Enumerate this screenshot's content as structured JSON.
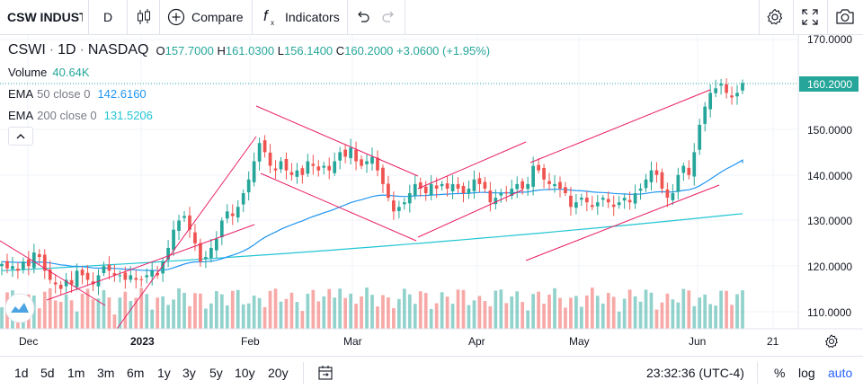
{
  "toolbar": {
    "symbol": "CSW INDUST",
    "interval": "D",
    "compare_label": "Compare",
    "indicators_label": "Indicators"
  },
  "legend": {
    "symbol": "CSWI",
    "interval": "1D",
    "exchange": "NASDAQ",
    "open_label": "O",
    "open": "157.7000",
    "high_label": "H",
    "high": "161.0300",
    "low_label": "L",
    "low": "156.1400",
    "close_label": "C",
    "close": "160.2000",
    "change": "+3.0600 (+1.95%)",
    "volume_label": "Volume",
    "volume": "40.64K",
    "ema50_name": "EMA",
    "ema50_params": "50 close 0",
    "ema50_value": "142.6160",
    "ema200_name": "EMA",
    "ema200_params": "200 close 0",
    "ema200_value": "131.5206"
  },
  "price_axis": {
    "labels": [
      "170.0000",
      "150.0000",
      "140.0000",
      "130.0000",
      "120.0000",
      "110.0000"
    ],
    "last_price_label": "160.2000"
  },
  "time_axis": {
    "labels": [
      "Dec",
      "2023",
      "Feb",
      "Mar",
      "Apr",
      "May",
      "Jun",
      "21"
    ]
  },
  "bottom": {
    "ranges": [
      "1d",
      "5d",
      "1m",
      "3m",
      "6m",
      "1y",
      "3y",
      "5y",
      "10y",
      "20y"
    ],
    "time": "23:32:36 (UTC-4)",
    "percent_label": "%",
    "log_label": "log",
    "auto_label": "auto"
  },
  "colors": {
    "up": "#26a69a",
    "down": "#ef5350",
    "ema50": "#2196f3",
    "ema200": "#22c5d3",
    "trendline": "#e91e63",
    "accent": "#2962ff"
  },
  "chart_data": {
    "type": "candlestick",
    "symbol": "CSWI",
    "interval": "1D",
    "ylim": [
      106.5,
      173
    ],
    "last_close": 160.2,
    "series": [
      {
        "name": "EMA 50 close 0",
        "last": 142.616
      },
      {
        "name": "EMA 200 close 0",
        "last": 131.5206
      },
      {
        "name": "Volume",
        "last": "40.64K"
      }
    ]
  }
}
